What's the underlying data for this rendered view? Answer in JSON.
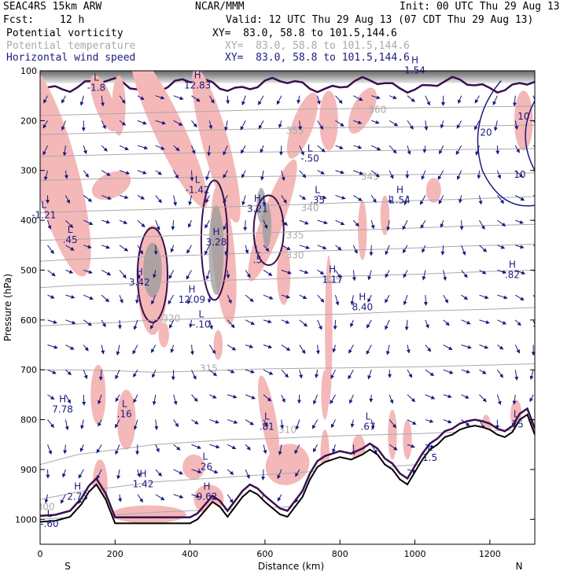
{
  "header": {
    "model": "SEAC4RS 15km ARW",
    "source": "NCAR/MMM",
    "init": "Init: 00 UTC Thu 29 Aug 13",
    "fcst_label": "Fcst:",
    "fcst_value": "12 h",
    "valid": "Valid: 12 UTC Thu 29 Aug 13 (07 CDT Thu 29 Aug 13)",
    "fields": [
      {
        "name": "Potential vorticity",
        "xy": "XY=  83.0, 58.8 to 101.5,144.6"
      },
      {
        "name": "Potential temperature",
        "xy": "XY=  83.0, 58.8 to 101.5,144.6"
      },
      {
        "name": "Horizontal wind speed",
        "xy": "XY=  83.0, 58.8 to 101.5,144.6"
      }
    ]
  },
  "chart_data": {
    "type": "cross-section",
    "xlabel": "Distance (km)",
    "ylabel": "Pressure (hPa)",
    "xlim": [
      0,
      1320
    ],
    "ylim": [
      1050,
      100
    ],
    "xticks": [
      "0",
      "200",
      "400",
      "600",
      "800",
      "1000",
      "1200"
    ],
    "yticks": [
      "100",
      "200",
      "300",
      "400",
      "500",
      "600",
      "700",
      "800",
      "900",
      "1000"
    ],
    "endpoints": {
      "left": "S",
      "right": "N"
    },
    "colors": {
      "pv_fill": "#f4b8b8",
      "pv_contour": "#3a1050",
      "theta": "#aaaaaa",
      "wind": "#1a1a80",
      "terrain": "#000000"
    },
    "theta_isentropes": [
      {
        "label": "300",
        "p": [
          1000,
          985,
          975,
          965,
          960
        ],
        "lx": 15,
        "lp": 975
      },
      {
        "label": "305",
        "p": [
          960,
          945,
          935,
          925,
          920,
          915,
          910,
          905,
          900,
          895,
          890,
          885,
          880,
          875
        ],
        "lx": null,
        "lp": null
      },
      {
        "label": "310",
        "p": [
          890,
          870,
          860,
          850,
          845,
          840,
          838,
          835,
          832,
          830,
          828,
          825,
          822,
          820
        ],
        "lx": 660,
        "lp": 820
      },
      {
        "label": "315",
        "p": [
          700,
          700,
          702,
          705,
          703,
          700,
          698,
          697,
          696,
          695,
          694,
          692,
          690,
          688
        ],
        "lx": 450,
        "lp": 697
      },
      {
        "label": "320",
        "p": [
          612,
          608,
          605,
          600,
          598,
          595,
          592,
          590,
          588,
          585,
          582,
          580,
          578,
          575
        ],
        "lx": 350,
        "lp": 597
      },
      {
        "label": "325",
        "p": [
          535,
          530,
          528,
          525,
          522,
          520,
          518,
          515,
          512,
          510,
          508,
          505,
          502,
          500
        ],
        "lx": 780,
        "lp": 520
      },
      {
        "label": "330",
        "p": [
          482,
          478,
          475,
          472,
          470,
          467,
          465,
          462,
          460,
          458,
          455,
          452,
          450,
          448
        ],
        "lx": 680,
        "lp": 470
      },
      {
        "label": "335",
        "p": [
          440,
          438,
          435,
          432,
          430,
          428,
          425,
          422,
          420,
          418,
          415,
          412,
          410,
          408
        ],
        "lx": 680,
        "lp": 430
      },
      {
        "label": "340",
        "p": [
          385,
          382,
          380,
          378,
          375,
          373,
          370,
          368,
          365,
          363,
          360,
          358,
          355,
          352
        ],
        "lx": 720,
        "lp": 375
      },
      {
        "label": "345",
        "p": [
          320,
          318,
          316,
          315,
          314,
          313,
          312,
          311,
          310,
          309,
          308,
          307,
          306,
          305
        ],
        "lx": 880,
        "lp": 312
      },
      {
        "label": "350",
        "p": [
          272,
          270,
          268,
          266,
          265,
          264,
          263,
          262,
          261,
          260,
          259,
          258,
          257,
          256
        ],
        "lx": null,
        "lp": null
      },
      {
        "label": "355",
        "p": [
          228,
          226,
          224,
          222,
          220,
          218,
          216,
          215,
          214,
          213,
          212,
          211,
          210,
          209
        ],
        "lx": 680,
        "lp": 220
      },
      {
        "label": "360",
        "p": [
          190,
          188,
          186,
          184,
          182,
          180,
          178,
          177,
          176,
          175,
          174,
          173,
          172,
          171
        ],
        "lx": 900,
        "lp": 178
      }
    ],
    "terrain": {
      "x": [
        0,
        40,
        80,
        110,
        130,
        150,
        175,
        200,
        250,
        300,
        350,
        400,
        420,
        460,
        480,
        500,
        520,
        540,
        560,
        580,
        600,
        640,
        660,
        700,
        720,
        740,
        760,
        780,
        800,
        830,
        860,
        880,
        900,
        920,
        940,
        960,
        980,
        1000,
        1020,
        1040,
        1060,
        1080,
        1100,
        1120,
        1140,
        1160,
        1180,
        1200,
        1220,
        1240,
        1260,
        1280,
        1300,
        1320
      ],
      "p": [
        1005,
        1003,
        995,
        970,
        945,
        930,
        960,
        1008,
        1008,
        1008,
        1008,
        1008,
        1000,
        965,
        975,
        995,
        975,
        955,
        942,
        950,
        965,
        990,
        995,
        955,
        920,
        895,
        885,
        880,
        875,
        880,
        870,
        860,
        870,
        890,
        900,
        920,
        930,
        905,
        880,
        860,
        850,
        835,
        830,
        820,
        815,
        812,
        815,
        820,
        830,
        835,
        825,
        800,
        790,
        830
      ]
    },
    "pv_labels": [
      {
        "t": "L",
        "v": "-1.8",
        "x": 150,
        "p": 120
      },
      {
        "t": "H",
        "v": "12.83",
        "x": 420,
        "p": 115
      },
      {
        "t": "H",
        "v": "1.54",
        "x": 1000,
        "p": 85
      },
      {
        "t": "L",
        "v": "-.50",
        "x": 720,
        "p": 262
      },
      {
        "t": "L",
        "v": "-1.42",
        "x": 420,
        "p": 325
      },
      {
        "t": "H",
        "v": "3.21",
        "x": 580,
        "p": 363
      },
      {
        "t": "L",
        "v": ".35",
        "x": 740,
        "p": 345
      },
      {
        "t": "H",
        "v": "1.54",
        "x": 960,
        "p": 345
      },
      {
        "t": "L",
        "v": "-1.21",
        "x": 10,
        "p": 375
      },
      {
        "t": "L",
        "v": ".45",
        "x": 80,
        "p": 425
      },
      {
        "t": "H",
        "v": "3.28",
        "x": 470,
        "p": 430
      },
      {
        "t": "L",
        "v": ".5",
        "x": 580,
        "p": 465
      },
      {
        "t": "H",
        "v": "3.42",
        "x": 265,
        "p": 510
      },
      {
        "t": "H",
        "v": "1.17",
        "x": 780,
        "p": 505
      },
      {
        "t": "H",
        "v": ".82",
        "x": 1260,
        "p": 495
      },
      {
        "t": "H",
        "v": "12.09",
        "x": 405,
        "p": 545
      },
      {
        "t": "H",
        "v": "8.40",
        "x": 860,
        "p": 560
      },
      {
        "t": "L",
        "v": "-.10",
        "x": 430,
        "p": 595
      },
      {
        "t": "H",
        "v": "7.78",
        "x": 60,
        "p": 765
      },
      {
        "t": "L",
        "v": ".16",
        "x": 225,
        "p": 775
      },
      {
        "t": "L",
        "v": ".81",
        "x": 605,
        "p": 800
      },
      {
        "t": "L",
        "v": ".67",
        "x": 875,
        "p": 800
      },
      {
        "t": "L",
        "v": ".75",
        "x": 1270,
        "p": 795
      },
      {
        "t": "L",
        "v": ".26",
        "x": 440,
        "p": 880
      },
      {
        "t": "L",
        "v": "1.5",
        "x": 1040,
        "p": 862
      },
      {
        "t": "H",
        "v": "1.42",
        "x": 275,
        "p": 915
      },
      {
        "t": "H",
        "v": "2.75",
        "x": 100,
        "p": 940
      },
      {
        "t": "H",
        "v": "9.62",
        "x": 445,
        "p": 940
      },
      {
        "t": "L",
        "v": "-.60",
        "x": 25,
        "p": 995
      }
    ],
    "wind_labels": [
      {
        "v": "20",
        "x": 1190,
        "p": 230
      },
      {
        "v": "10",
        "x": 1290,
        "p": 198
      },
      {
        "v": "10",
        "x": 1280,
        "p": 315
      }
    ]
  }
}
